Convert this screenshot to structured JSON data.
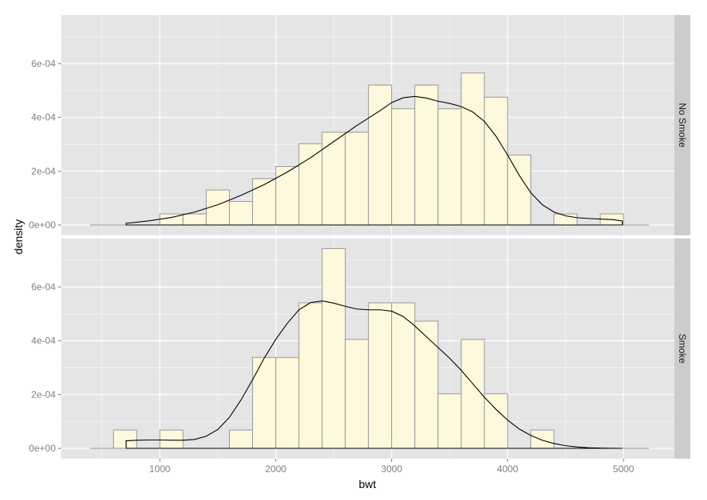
{
  "chart_data": {
    "type": "histogram",
    "title": "",
    "xlabel": "bwt",
    "ylabel": "density",
    "xlim": [
      300,
      5400
    ],
    "ylim": [
      -3e-05,
      0.00078
    ],
    "x_ticks": [
      1000,
      2000,
      3000,
      4000,
      5000
    ],
    "x_tick_labels": [
      "1000",
      "2000",
      "3000",
      "4000",
      "5000"
    ],
    "y_ticks": [
      0,
      0.0002,
      0.0004,
      0.0006
    ],
    "y_tick_labels": [
      "0e+00",
      "2e-04",
      "4e-04",
      "6e-04"
    ],
    "grid": true,
    "binwidth": 200,
    "bar_fill": "#fff8dc",
    "bar_outline": "#999999",
    "panel_bg": "#e5e5e5",
    "strip_bg": "#cccccc",
    "density_line_color": "#000000",
    "facet_by": "smoke",
    "panels": [
      {
        "label": "No Smoke",
        "bins": [
          {
            "x0": 1000,
            "x1": 1200,
            "density": 4.1e-05
          },
          {
            "x0": 1200,
            "x1": 1400,
            "density": 4.1e-05
          },
          {
            "x0": 1400,
            "x1": 1600,
            "density": 0.00013
          },
          {
            "x0": 1600,
            "x1": 1800,
            "density": 8.7e-05
          },
          {
            "x0": 1800,
            "x1": 2000,
            "density": 0.000172
          },
          {
            "x0": 2000,
            "x1": 2200,
            "density": 0.000217
          },
          {
            "x0": 2200,
            "x1": 2400,
            "density": 0.000302
          },
          {
            "x0": 2400,
            "x1": 2600,
            "density": 0.000345
          },
          {
            "x0": 2600,
            "x1": 2800,
            "density": 0.000345
          },
          {
            "x0": 2800,
            "x1": 3000,
            "density": 0.00052
          },
          {
            "x0": 3000,
            "x1": 3200,
            "density": 0.000432
          },
          {
            "x0": 3200,
            "x1": 3400,
            "density": 0.00052
          },
          {
            "x0": 3400,
            "x1": 3600,
            "density": 0.000432
          },
          {
            "x0": 3600,
            "x1": 3800,
            "density": 0.000565
          },
          {
            "x0": 3800,
            "x1": 4000,
            "density": 0.000475
          },
          {
            "x0": 4000,
            "x1": 4200,
            "density": 0.00026
          },
          {
            "x0": 4200,
            "x1": 4400,
            "density": 0.0
          },
          {
            "x0": 4400,
            "x1": 4600,
            "density": 4.1e-05
          },
          {
            "x0": 4600,
            "x1": 4800,
            "density": 0.0
          },
          {
            "x0": 4800,
            "x1": 5000,
            "density": 4.1e-05
          }
        ],
        "density_curve": {
          "x": [
            709,
            900,
            1100,
            1300,
            1500,
            1700,
            1900,
            2100,
            2300,
            2500,
            2700,
            2900,
            3000,
            3100,
            3200,
            3300,
            3400,
            3500,
            3600,
            3700,
            3800,
            3900,
            4000,
            4100,
            4200,
            4300,
            4400,
            4500,
            4600,
            4700,
            4800,
            4900,
            4990
          ],
          "y": [
            6e-06,
            1.5e-05,
            2.8e-05,
            4.8e-05,
            7.5e-05,
            0.00011,
            0.00015,
            0.000197,
            0.00025,
            0.00031,
            0.00037,
            0.000425,
            0.000455,
            0.000473,
            0.000478,
            0.000472,
            0.00046,
            0.000452,
            0.00044,
            0.00042,
            0.000385,
            0.00033,
            0.00026,
            0.000185,
            0.00012,
            7.5e-05,
            4.8e-05,
            3.4e-05,
            2.7e-05,
            2.4e-05,
            2.2e-05,
            2e-05,
            1.5e-05
          ]
        }
      },
      {
        "label": "Smoke",
        "bins": [
          {
            "x0": 600,
            "x1": 800,
            "density": 6.8e-05
          },
          {
            "x0": 800,
            "x1": 1000,
            "density": 0.0
          },
          {
            "x0": 1000,
            "x1": 1200,
            "density": 6.8e-05
          },
          {
            "x0": 1200,
            "x1": 1400,
            "density": 0.0
          },
          {
            "x0": 1400,
            "x1": 1600,
            "density": 0.0
          },
          {
            "x0": 1600,
            "x1": 1800,
            "density": 6.8e-05
          },
          {
            "x0": 1800,
            "x1": 2000,
            "density": 0.000338
          },
          {
            "x0": 2000,
            "x1": 2200,
            "density": 0.000338
          },
          {
            "x0": 2200,
            "x1": 2400,
            "density": 0.000541
          },
          {
            "x0": 2400,
            "x1": 2600,
            "density": 0.000743
          },
          {
            "x0": 2600,
            "x1": 2800,
            "density": 0.000405
          },
          {
            "x0": 2800,
            "x1": 3000,
            "density": 0.000541
          },
          {
            "x0": 3000,
            "x1": 3200,
            "density": 0.000541
          },
          {
            "x0": 3200,
            "x1": 3400,
            "density": 0.000473
          },
          {
            "x0": 3400,
            "x1": 3600,
            "density": 0.000203
          },
          {
            "x0": 3600,
            "x1": 3800,
            "density": 0.000405
          },
          {
            "x0": 3800,
            "x1": 4000,
            "density": 0.000203
          },
          {
            "x0": 4000,
            "x1": 4200,
            "density": 0.0
          },
          {
            "x0": 4200,
            "x1": 4400,
            "density": 6.8e-05
          }
        ],
        "density_curve": {
          "x": [
            709,
            800,
            900,
            1000,
            1100,
            1200,
            1300,
            1400,
            1500,
            1600,
            1700,
            1800,
            1900,
            2000,
            2100,
            2200,
            2300,
            2400,
            2500,
            2600,
            2700,
            2800,
            2900,
            3000,
            3100,
            3200,
            3300,
            3400,
            3500,
            3600,
            3700,
            3800,
            3900,
            4000,
            4100,
            4200,
            4300,
            4400,
            4500,
            4600,
            4700,
            4800,
            4990
          ],
          "y": [
            2.8e-05,
            3e-05,
            3.1e-05,
            3.1e-05,
            3e-05,
            3e-05,
            3.3e-05,
            4.5e-05,
            7e-05,
            0.000115,
            0.00018,
            0.000255,
            0.000335,
            0.000405,
            0.000465,
            0.000515,
            0.000542,
            0.000548,
            0.00054,
            0.000528,
            0.000518,
            0.000515,
            0.000515,
            0.00051,
            0.00049,
            0.000455,
            0.000415,
            0.000375,
            0.000335,
            0.00029,
            0.00024,
            0.00019,
            0.000145,
            0.000105,
            7.2e-05,
            4.8e-05,
            3e-05,
            1.8e-05,
            1e-05,
            5e-06,
            2e-06,
            1e-06,
            0.0
          ]
        }
      }
    ]
  }
}
